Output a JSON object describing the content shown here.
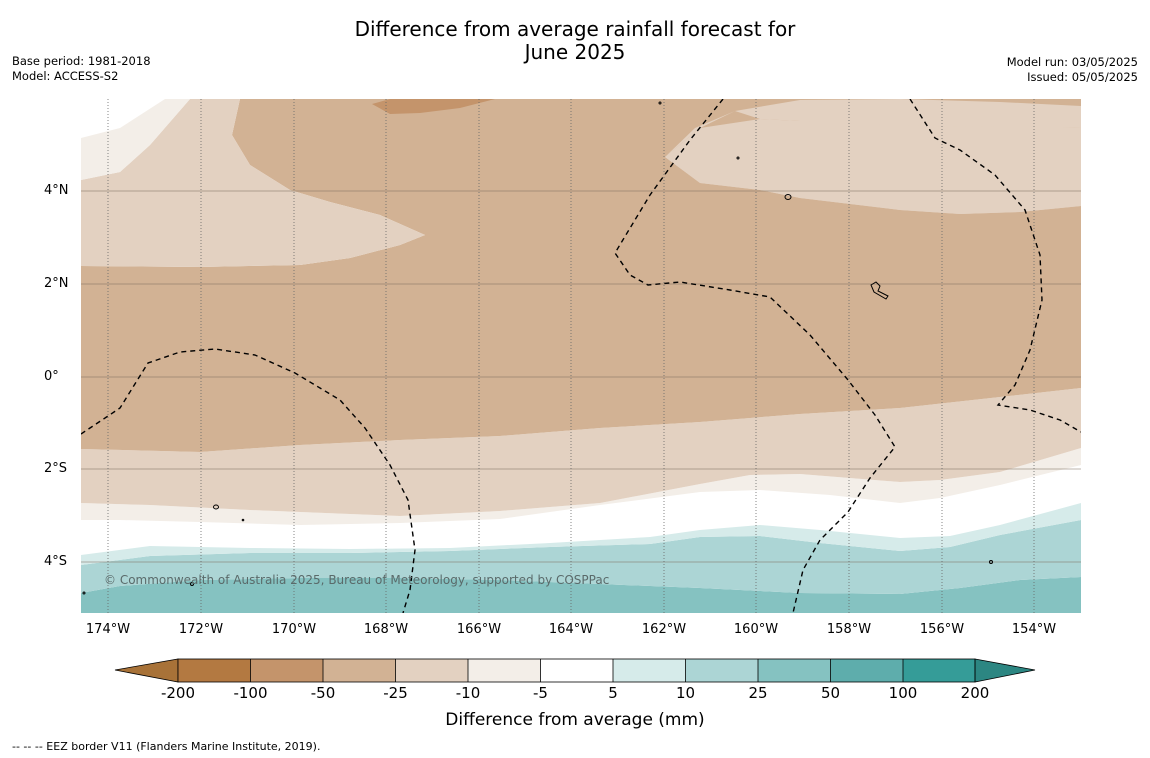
{
  "title_line1": "Difference from average rainfall forecast for",
  "title_line2": "June 2025",
  "info_left": [
    "Base period: 1981-2018",
    "Model: ACCESS-S2"
  ],
  "info_right": [
    "Model run: 03/05/2025",
    "Issued: 05/05/2025"
  ],
  "lat_labels": [
    "4°N",
    "2°N",
    "0°",
    "2°S",
    "4°S"
  ],
  "lon_labels": [
    "174°W",
    "172°W",
    "170°W",
    "168°W",
    "166°W",
    "164°W",
    "162°W",
    "160°W",
    "158°W",
    "156°W",
    "154°W"
  ],
  "copyright": "© Commonwealth of Australia 2025, Bureau of Meteorology, supported by COSPPac",
  "colorbar": {
    "ticks": [
      "-200",
      "-100",
      "-50",
      "-25",
      "-10",
      "-5",
      "5",
      "10",
      "25",
      "50",
      "100",
      "200"
    ],
    "colors": [
      "#a87238",
      "#b37941",
      "#c4946b",
      "#d2b294",
      "#e3d1c1",
      "#f3eee8",
      "#ffffff",
      "#d6ebea",
      "#acd5d5",
      "#85c2c1",
      "#5eadac",
      "#359c98",
      "#2c8682"
    ],
    "label": "Difference from average (mm)"
  },
  "footer": "--  --  -- EEZ border V11 (Flanders Marine Institute, 2019)."
}
